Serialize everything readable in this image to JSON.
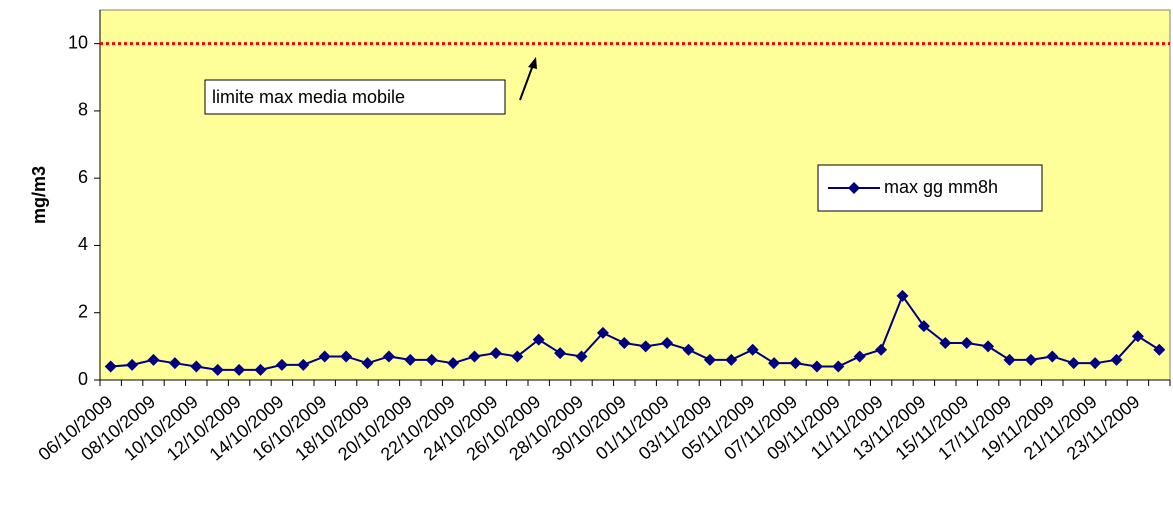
{
  "chart_data": {
    "type": "line",
    "y_label": "mg/m3",
    "categories": [
      "06/10/2009",
      null,
      "08/10/2009",
      null,
      "10/10/2009",
      null,
      "12/10/2009",
      null,
      "14/10/2009",
      null,
      "16/10/2009",
      null,
      "18/10/2009",
      null,
      "20/10/2009",
      null,
      "22/10/2009",
      null,
      "24/10/2009",
      null,
      "26/10/2009",
      null,
      "28/10/2009",
      null,
      "30/10/2009",
      null,
      "01/11/2009",
      null,
      "03/11/2009",
      null,
      "05/11/2009",
      null,
      "07/11/2009",
      null,
      "09/11/2009",
      null,
      "11/11/2009",
      null,
      "13/11/2009",
      null,
      "15/11/2009",
      null,
      "17/11/2009",
      null,
      "19/11/2009",
      null,
      "21/11/2009",
      null,
      "23/11/2009",
      null
    ],
    "series": [
      {
        "name": "max gg mm8h",
        "color": "#000080",
        "values": [
          0.4,
          0.45,
          0.6,
          0.5,
          0.4,
          0.3,
          0.3,
          0.3,
          0.45,
          0.45,
          0.7,
          0.7,
          0.5,
          0.7,
          0.6,
          0.6,
          0.5,
          0.7,
          0.8,
          0.7,
          1.2,
          0.8,
          0.7,
          1.4,
          1.1,
          1.0,
          1.1,
          0.9,
          0.6,
          0.6,
          0.9,
          0.5,
          0.5,
          0.4,
          0.4,
          0.7,
          0.9,
          2.5,
          1.6,
          1.1,
          1.1,
          1.0,
          0.6,
          0.6,
          0.7,
          0.5,
          0.5,
          0.6,
          1.3,
          0.9
        ]
      }
    ],
    "limit": 10,
    "limit_color": "#ff0000",
    "annotation": "limite max media mobile",
    "ylim": [
      0,
      11
    ],
    "yticks": [
      0,
      2,
      4,
      6,
      8,
      10
    ],
    "plot_color": "#ffff99",
    "grid": false,
    "legend": "right"
  }
}
